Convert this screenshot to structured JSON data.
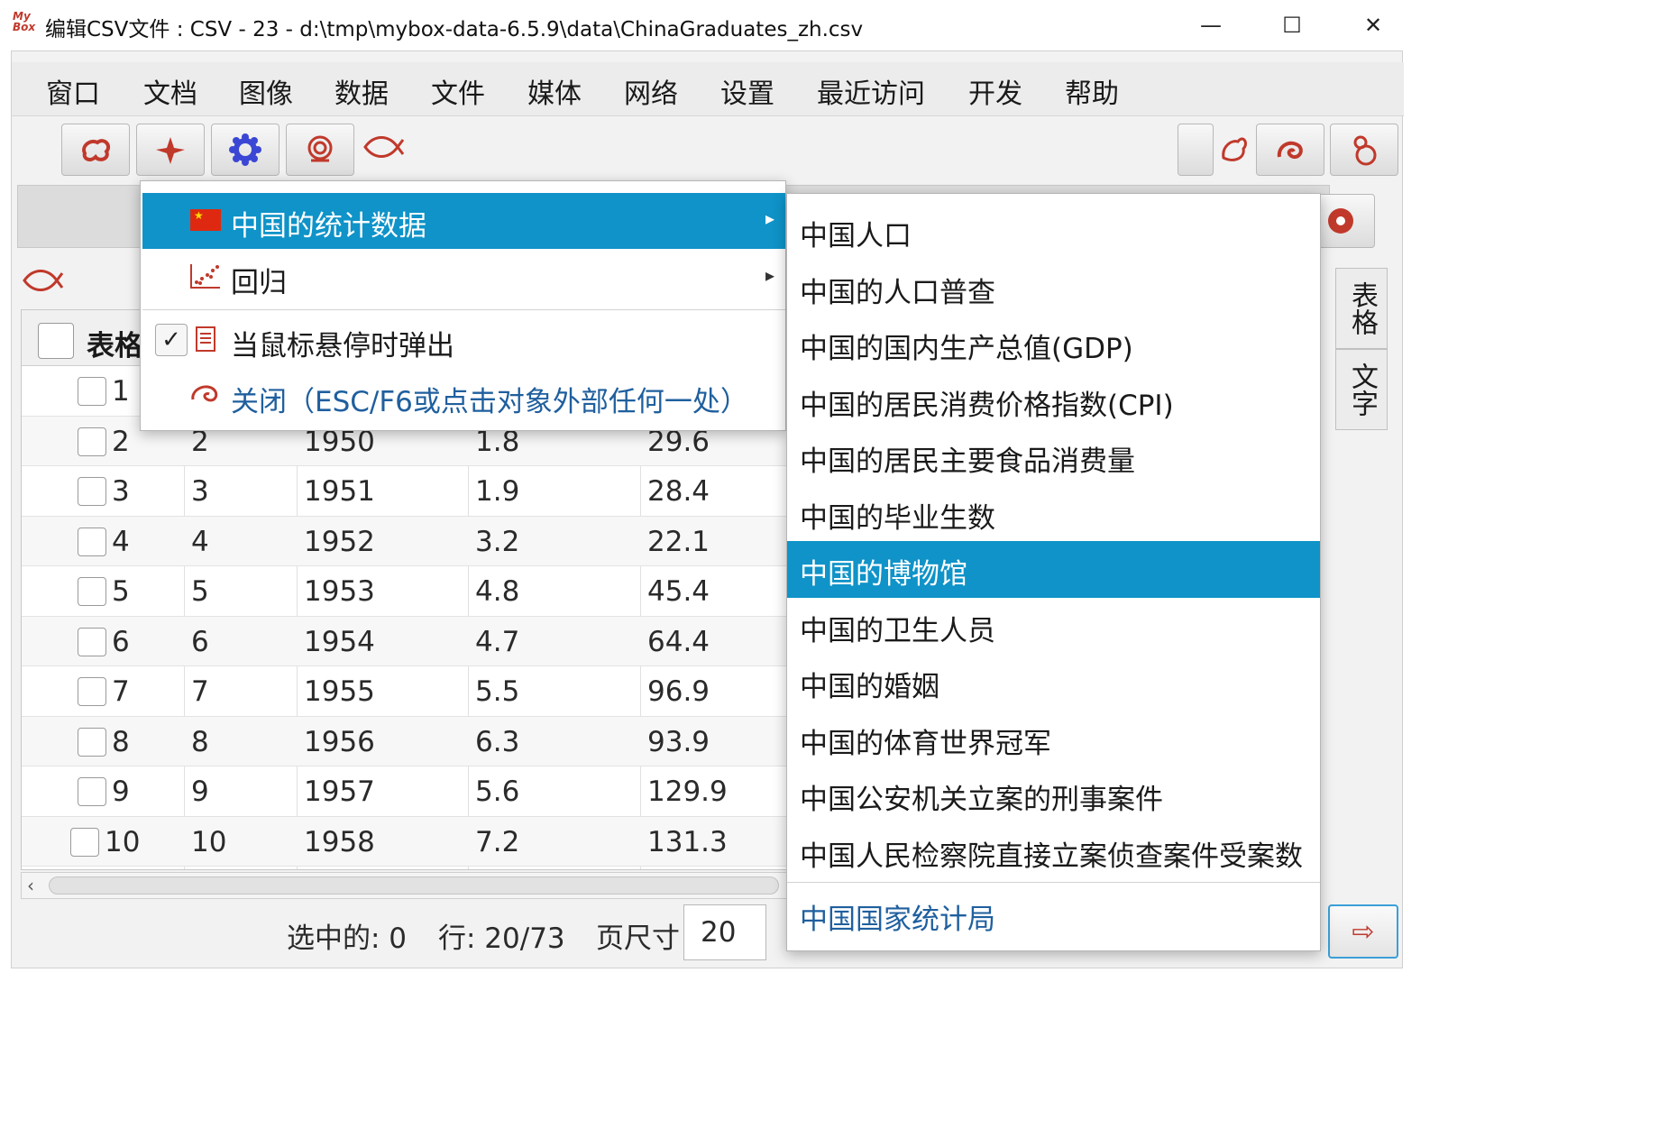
{
  "window": {
    "logo_text": "My Box",
    "title": "编辑CSV文件 : CSV - 23 - d:\\tmp\\mybox-data-6.5.9\\data\\ChinaGraduates_zh.csv",
    "minimize": "—",
    "maximize": "☐",
    "close": "✕"
  },
  "menubar": {
    "items": [
      "窗口",
      "文档",
      "图像",
      "数据",
      "文件",
      "媒体",
      "网络",
      "设置",
      "最近访问",
      "开发",
      "帮助"
    ]
  },
  "toolbar": {
    "icons": [
      "cloud-swirl-icon",
      "flower-icon",
      "gear-icon",
      "peony-icon",
      "fish-icon",
      "chicken-icon",
      "swirl-icon",
      "gourd-icon",
      "flower-bloom-icon"
    ]
  },
  "table": {
    "header_label": "表格",
    "rows": [
      {
        "num": "1",
        "idx": "",
        "year": "",
        "a": "",
        "b": ""
      },
      {
        "num": "2",
        "idx": "2",
        "year": "1950",
        "a": "1.8",
        "b": "29.6"
      },
      {
        "num": "3",
        "idx": "3",
        "year": "1951",
        "a": "1.9",
        "b": "28.4"
      },
      {
        "num": "4",
        "idx": "4",
        "year": "1952",
        "a": "3.2",
        "b": "22.1"
      },
      {
        "num": "5",
        "idx": "5",
        "year": "1953",
        "a": "4.8",
        "b": "45.4"
      },
      {
        "num": "6",
        "idx": "6",
        "year": "1954",
        "a": "4.7",
        "b": "64.4"
      },
      {
        "num": "7",
        "idx": "7",
        "year": "1955",
        "a": "5.5",
        "b": "96.9"
      },
      {
        "num": "8",
        "idx": "8",
        "year": "1956",
        "a": "6.3",
        "b": "93.9"
      },
      {
        "num": "9",
        "idx": "9",
        "year": "1957",
        "a": "5.6",
        "b": "129.9"
      },
      {
        "num": "10",
        "idx": "10",
        "year": "1958",
        "a": "7.2",
        "b": "131.3"
      }
    ]
  },
  "status": {
    "selected": "选中的: 0",
    "rows": "行: 20/73",
    "page_size_label": "页尺寸",
    "page_size_value": "20",
    "next": "⇨"
  },
  "side_tabs": [
    "表格",
    "文字"
  ],
  "popup": {
    "items": [
      {
        "label": "中国的统计数据",
        "icon": "china-flag-icon",
        "submenu": true
      },
      {
        "label": "回归",
        "icon": "scatter-chart-icon",
        "submenu": true
      },
      {
        "label": "当鼠标悬停时弹出",
        "icon": "document-icon",
        "checked": true
      },
      {
        "label": "关闭（ESC/F6或点击对象外部任何一处）",
        "icon": "swirl-close-icon"
      }
    ],
    "check_mark": "✓",
    "submenu_arrow": "▸"
  },
  "submenu": {
    "items": [
      "中国人口",
      "中国的人口普查",
      "中国的国内生产总值(GDP)",
      "中国的居民消费价格指数(CPI)",
      "中国的居民主要食品消费量",
      "中国的毕业生数",
      "中国的博物馆",
      "中国的卫生人员",
      "中国的婚姻",
      "中国的体育世界冠军",
      "中国公安机关立案的刑事案件",
      "中国人民检察院直接立案侦查案件受案数"
    ],
    "active_index": 6,
    "link": "中国国家统计局"
  },
  "colors": {
    "accent": "#0f93c8",
    "icon_red": "#c0392b",
    "link_blue": "#1f5f9e"
  }
}
